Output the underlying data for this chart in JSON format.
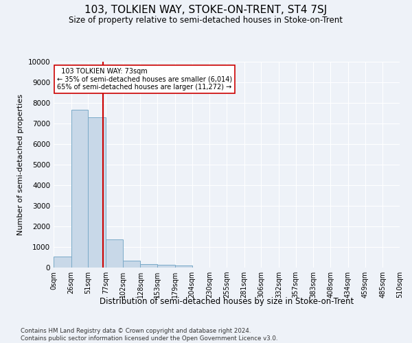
{
  "title": "103, TOLKIEN WAY, STOKE-ON-TRENT, ST4 7SJ",
  "subtitle": "Size of property relative to semi-detached houses in Stoke-on-Trent",
  "xlabel": "Distribution of semi-detached houses by size in Stoke-on-Trent",
  "ylabel": "Number of semi-detached properties",
  "footnote": "Contains HM Land Registry data © Crown copyright and database right 2024.\nContains public sector information licensed under the Open Government Licence v3.0.",
  "property_size": 73,
  "property_label": "103 TOLKIEN WAY: 73sqm",
  "pct_smaller": 35,
  "count_smaller": 6014,
  "pct_larger": 65,
  "count_larger": 11272,
  "bar_color": "#c8d8e8",
  "bar_edge_color": "#7aaac8",
  "vline_color": "#cc0000",
  "annotation_box_color": "#ffffff",
  "annotation_box_edge": "#cc0000",
  "background_color": "#eef2f8",
  "ylim": [
    0,
    10000
  ],
  "yticks": [
    0,
    1000,
    2000,
    3000,
    4000,
    5000,
    6000,
    7000,
    8000,
    9000,
    10000
  ],
  "bin_edges": [
    0,
    26,
    51,
    77,
    102,
    128,
    153,
    179,
    204,
    230,
    255,
    281,
    306,
    332,
    357,
    383,
    408,
    434,
    459,
    485,
    510
  ],
  "bin_labels": [
    "0sqm",
    "26sqm",
    "51sqm",
    "77sqm",
    "102sqm",
    "128sqm",
    "153sqm",
    "179sqm",
    "204sqm",
    "230sqm",
    "255sqm",
    "281sqm",
    "306sqm",
    "332sqm",
    "357sqm",
    "383sqm",
    "408sqm",
    "434sqm",
    "459sqm",
    "485sqm",
    "510sqm"
  ],
  "counts": [
    550,
    7650,
    7300,
    1380,
    330,
    160,
    120,
    90,
    0,
    0,
    0,
    0,
    0,
    0,
    0,
    0,
    0,
    0,
    0,
    0
  ]
}
